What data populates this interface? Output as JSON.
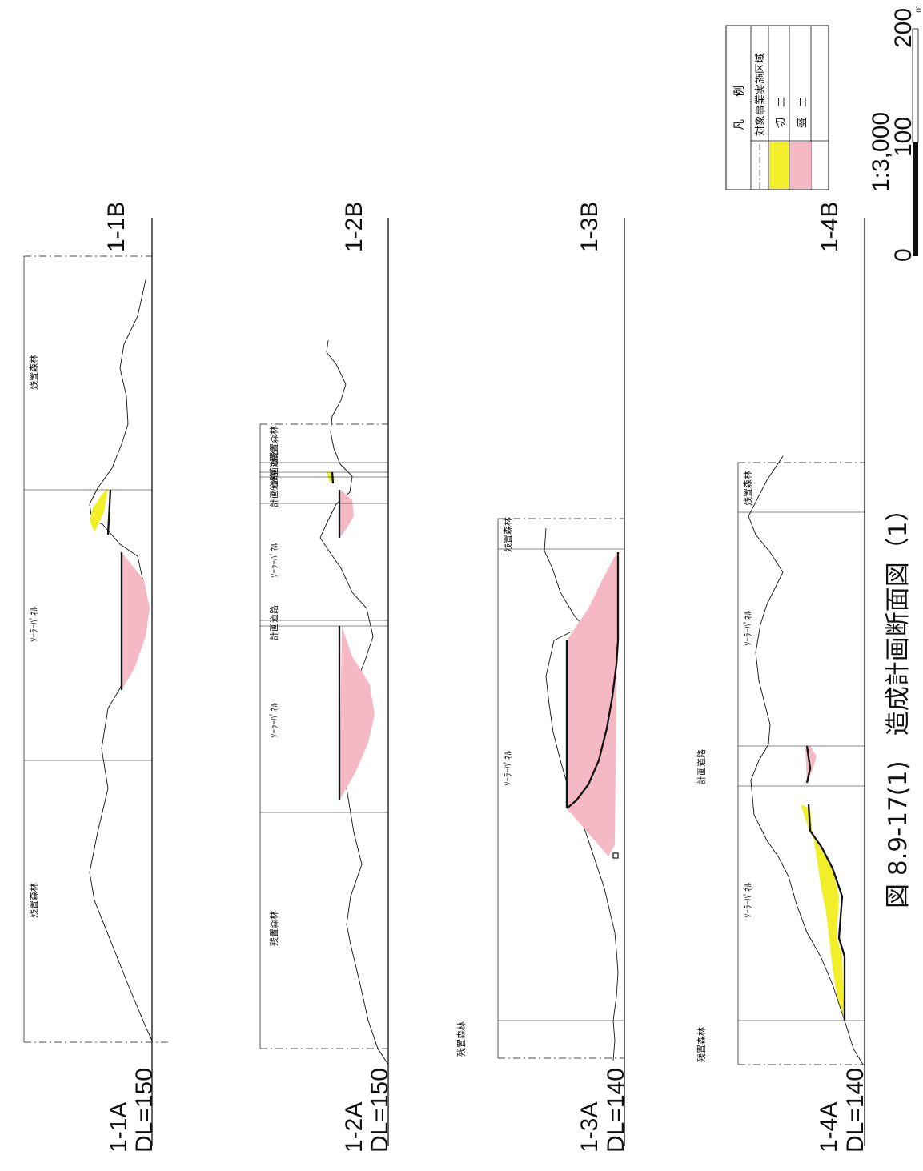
{
  "figure": {
    "caption": "図 8.9-17(1)　造成計画断面図（1）"
  },
  "legend": {
    "title": "凡　　例",
    "items": [
      {
        "label": "対象事業実施区域",
        "symbol": "dash-line"
      },
      {
        "label": "切　土",
        "symbol": "fill",
        "color": "#f2ee2a"
      },
      {
        "label": "盛　土",
        "symbol": "fill",
        "color": "#f5b8c5"
      }
    ]
  },
  "scale": {
    "ratio": "1:3,000",
    "ticks": [
      "0",
      "100",
      "200"
    ],
    "unit": "m"
  },
  "colors": {
    "cut": "#f2ee2a",
    "fill": "#f5b8c5",
    "ink": "#111111"
  },
  "sections": [
    {
      "id": "1-1",
      "start_label": "1-1A",
      "end_label": "1-1B",
      "datum": "DL=150",
      "zones": [
        "残置森林",
        "ｿｰﾗｰﾊﾟﾈﾙ",
        "残置森林"
      ]
    },
    {
      "id": "1-2",
      "start_label": "1-2A",
      "end_label": "1-2B",
      "datum": "DL=150",
      "zones": [
        "残置森林",
        "ｿｰﾗｰﾊﾟﾈﾙ",
        "計画道路",
        "ｿｰﾗｰﾊﾟﾈﾙ",
        "計画道路",
        "ｿｰﾗｰﾊﾟﾈﾙ",
        "計画道路",
        "残置森林"
      ]
    },
    {
      "id": "1-3",
      "start_label": "1-3A",
      "end_label": "1-3B",
      "datum": "DL=140",
      "zones": [
        "残置森林",
        "ｿｰﾗｰﾊﾟﾈﾙ",
        "残置森林"
      ]
    },
    {
      "id": "1-4",
      "start_label": "1-4A",
      "end_label": "1-4B",
      "datum": "DL=140",
      "zones": [
        "残置森林",
        "ｿｰﾗｰﾊﾟﾈﾙ",
        "計画道路",
        "ｿｰﾗｰﾊﾟﾈﾙ",
        "残置森林"
      ]
    }
  ]
}
